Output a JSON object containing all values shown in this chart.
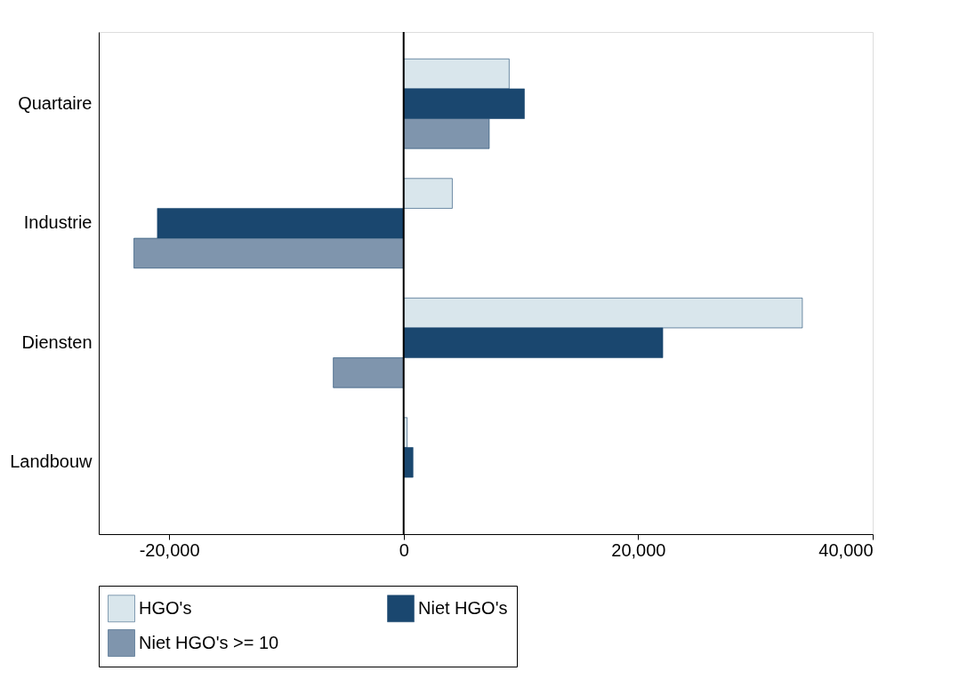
{
  "chart_data": {
    "type": "bar",
    "orientation": "horizontal",
    "categories": [
      "Quartaire",
      "Industrie",
      "Diensten",
      "Landbouw"
    ],
    "series": [
      {
        "name": "HGO's",
        "color": "#d9e6ec",
        "values": [
          9000,
          4150,
          34000,
          300
        ]
      },
      {
        "name": "Niet HGO's",
        "color": "#1a476f",
        "values": [
          10300,
          -21000,
          22100,
          800
        ]
      },
      {
        "name": "Niet HGO's >= 10",
        "color": "#7f95ad",
        "values": [
          7300,
          -23000,
          -6000,
          null
        ]
      }
    ],
    "xlim": [
      -26000,
      40000
    ],
    "xticks": [
      {
        "value": -20000,
        "label": "-20,000"
      },
      0,
      {
        "value": 20000,
        "label": "20,000"
      },
      {
        "value": 40000,
        "label": "40,000"
      }
    ],
    "ref_lines": [
      {
        "axis": "x",
        "value": 0,
        "color": "#000000"
      }
    ],
    "grid": false,
    "legend": "bottom"
  }
}
